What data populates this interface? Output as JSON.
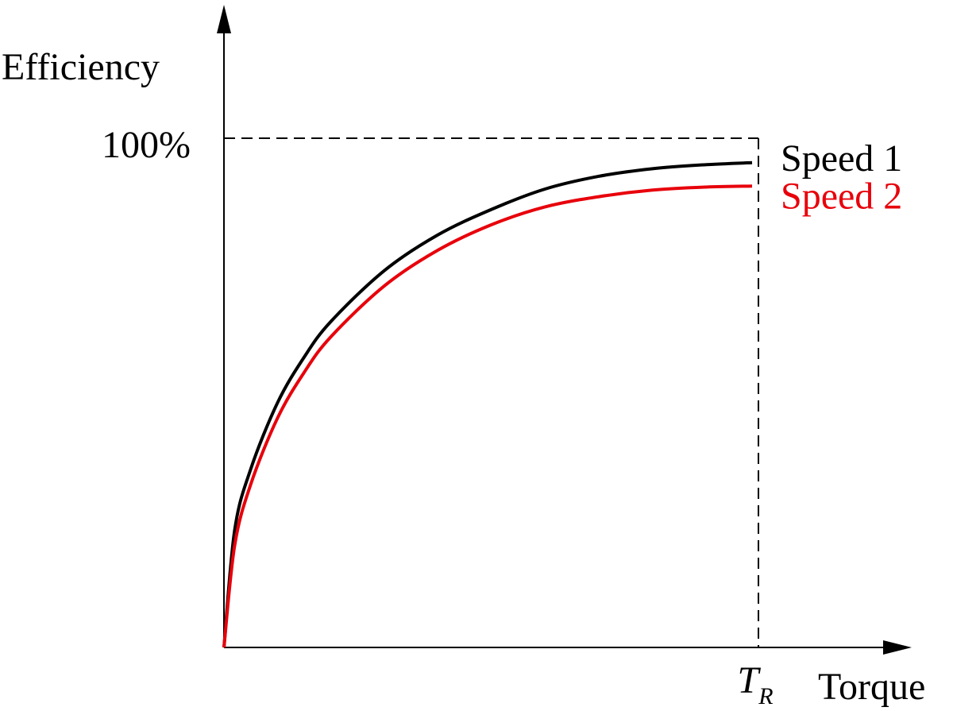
{
  "chart_data": {
    "type": "line",
    "ylabel": "Efficiency",
    "xlabel": "Torque",
    "x_axis_ticks": [
      {
        "main": "T",
        "sub": "R",
        "x": 1.0
      }
    ],
    "y_axis_ticks": [
      {
        "label": "100%",
        "y": 100
      }
    ],
    "xlim": [
      0,
      1.0
    ],
    "ylim": [
      0,
      100
    ],
    "grid": false,
    "legend": "right-of-curve-ends",
    "series": [
      {
        "name": "Speed 1",
        "color": "#000000",
        "x": [
          0,
          0.02,
          0.05,
          0.1,
          0.15,
          0.2,
          0.3,
          0.4,
          0.5,
          0.6,
          0.7,
          0.8,
          0.9,
          1.0
        ],
        "y": [
          0,
          23,
          35,
          48,
          57,
          64,
          74,
          81,
          86,
          90,
          92.5,
          94,
          94.8,
          95.2
        ]
      },
      {
        "name": "Speed 2",
        "color": "#e8000b",
        "x": [
          0,
          0.02,
          0.05,
          0.1,
          0.15,
          0.2,
          0.3,
          0.4,
          0.5,
          0.6,
          0.7,
          0.8,
          0.9,
          1.0
        ],
        "y": [
          0,
          20,
          32,
          45,
          54,
          61,
          71,
          78,
          83,
          86.5,
          88.5,
          89.8,
          90.4,
          90.6
        ]
      }
    ],
    "reference_lines": [
      {
        "kind": "horizontal",
        "y": 100,
        "style": "dashed"
      },
      {
        "kind": "vertical",
        "x": 1.0,
        "style": "dashed"
      }
    ]
  }
}
